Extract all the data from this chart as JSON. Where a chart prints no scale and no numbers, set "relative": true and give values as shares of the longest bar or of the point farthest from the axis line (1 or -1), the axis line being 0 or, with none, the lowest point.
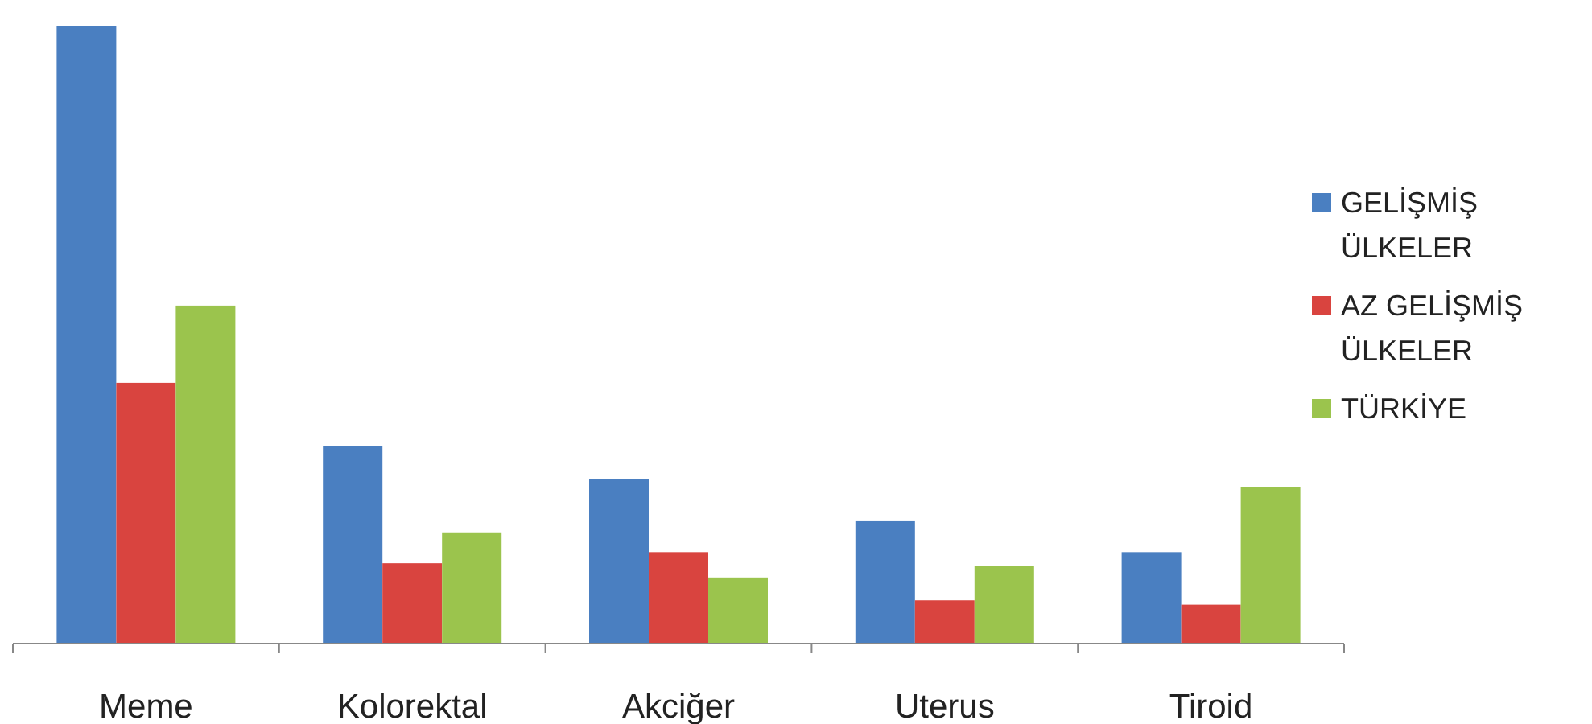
{
  "chart_data": {
    "type": "bar",
    "relative": true,
    "categories": [
      "Meme",
      "Kolorektal",
      "Akciğer",
      "Uterus",
      "Tiroid"
    ],
    "legend": "right",
    "series": [
      {
        "name": "GELİŞMİŞ ÜLKELER",
        "color": "#4a7fc1",
        "values": [
          1,
          0.32,
          0.266,
          0.198,
          0.148
        ]
      },
      {
        "name": "AZ GELİŞMİŞ ÜLKELER",
        "color": "#d9443f",
        "values": [
          0.422,
          0.13,
          0.148,
          0.07,
          0.063
        ]
      },
      {
        "name": "TÜRKİYE",
        "color": "#9bc44d",
        "values": [
          0.547,
          0.18,
          0.107,
          0.125,
          0.253
        ]
      }
    ]
  }
}
